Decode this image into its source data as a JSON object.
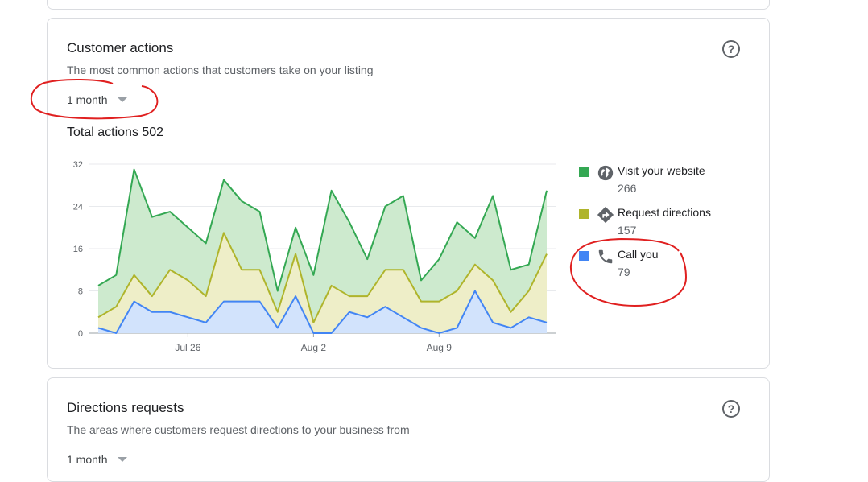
{
  "customer_actions": {
    "title": "Customer actions",
    "subtitle": "The most common actions that customers take on your listing",
    "period": "1 month",
    "total_label": "Total actions 502"
  },
  "directions_requests": {
    "title": "Directions requests",
    "subtitle": "The areas where customers request directions to your business from",
    "period": "1 month"
  },
  "legend": [
    {
      "label": "Visit your website",
      "count": "266",
      "color": "#34a853",
      "icon": "globe-icon"
    },
    {
      "label": "Request directions",
      "count": "157",
      "color": "#afb42b",
      "icon": "directions-icon"
    },
    {
      "label": "Call you",
      "count": "79",
      "color": "#4285f4",
      "icon": "phone-icon"
    }
  ],
  "chart_data": {
    "type": "area",
    "stacked": true,
    "ylim": [
      0,
      32
    ],
    "yticks": [
      0,
      8,
      16,
      24,
      32
    ],
    "x_tick_labels": [
      {
        "label": "Jul 26",
        "index": 5
      },
      {
        "label": "Aug 2",
        "index": 12
      },
      {
        "label": "Aug 9",
        "index": 19
      }
    ],
    "grid": true,
    "legend_position": "right",
    "series": [
      {
        "name": "Call you",
        "color": "#4285f4",
        "fill": "#d2e3fc",
        "values": [
          1,
          0,
          6,
          4,
          4,
          3,
          2,
          6,
          6,
          6,
          1,
          7,
          0,
          0,
          4,
          3,
          5,
          3,
          1,
          0,
          1,
          8,
          2,
          1,
          3,
          2
        ]
      },
      {
        "name": "Request directions",
        "color": "#afb42b",
        "fill": "#eeeec8",
        "values": [
          2,
          5,
          5,
          3,
          8,
          7,
          5,
          13,
          6,
          6,
          3,
          8,
          2,
          9,
          3,
          4,
          7,
          9,
          5,
          6,
          7,
          5,
          8,
          3,
          5,
          13
        ]
      },
      {
        "name": "Visit your website",
        "color": "#34a853",
        "fill": "#cdeace",
        "values": [
          6,
          6,
          20,
          15,
          11,
          10,
          10,
          10,
          13,
          11,
          4,
          5,
          9,
          18,
          14,
          7,
          12,
          14,
          4,
          8,
          13,
          5,
          16,
          8,
          5,
          12
        ]
      }
    ],
    "cumulative_totals": [
      9,
      11,
      31,
      22,
      23,
      20,
      17,
      29,
      25,
      23,
      8,
      20,
      11,
      27,
      21,
      14,
      24,
      26,
      10,
      14,
      21,
      18,
      26,
      12,
      13,
      27
    ]
  }
}
